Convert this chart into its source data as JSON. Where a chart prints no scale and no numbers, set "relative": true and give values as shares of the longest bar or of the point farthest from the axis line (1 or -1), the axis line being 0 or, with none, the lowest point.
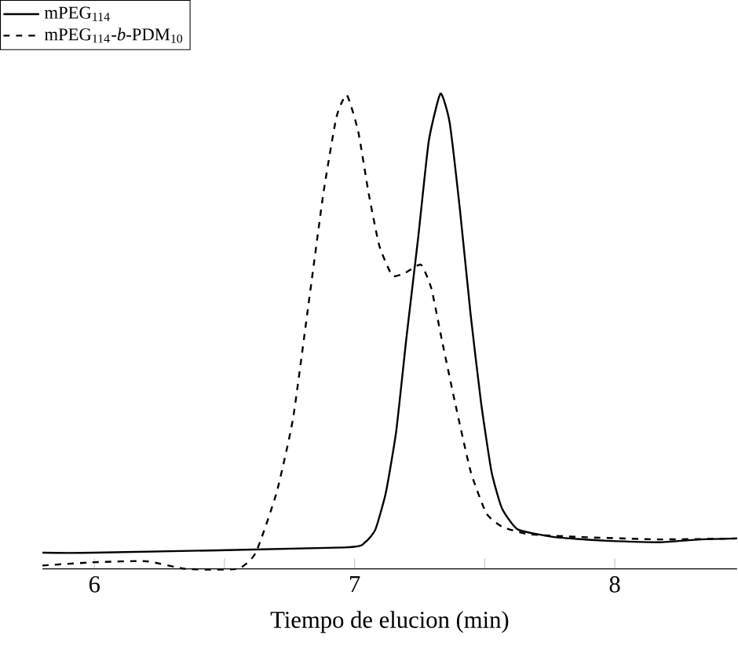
{
  "chart_data": {
    "type": "line",
    "relative": true,
    "xlabel": "Tiempo de elucion (min)",
    "xlim": [
      5.8,
      8.47
    ],
    "xticks": [
      6,
      {
        "value": 6.5,
        "label": null
      },
      7,
      {
        "value": 7.5,
        "label": null
      },
      8
    ],
    "legend": "top left",
    "series": [
      {
        "name": "mPEG$_{114}$",
        "color": "#000000",
        "line_style": "solid",
        "x": [
          5.8,
          6.0,
          6.96,
          7.04,
          7.08,
          7.12,
          7.16,
          7.2,
          7.245,
          7.285,
          7.33,
          7.365,
          7.405,
          7.446,
          7.486,
          7.526,
          7.566,
          7.627,
          7.767,
          7.968,
          8.17,
          8.33,
          8.47
        ],
        "values": [
          0.034,
          0.034,
          0.045,
          0.056,
          0.083,
          0.16,
          0.29,
          0.49,
          0.7,
          0.9,
          1.0,
          0.94,
          0.755,
          0.535,
          0.35,
          0.205,
          0.128,
          0.083,
          0.067,
          0.059,
          0.056,
          0.062,
          0.064
        ]
      },
      {
        "name": "mPEG$_{114}$-*b*-PDM$_{10}$",
        "color": "#000000",
        "line_style": "dashed",
        "x": [
          5.8,
          6.0,
          6.2,
          6.35,
          6.55,
          6.62,
          6.7,
          6.763,
          6.82,
          6.88,
          6.93,
          6.97,
          7.014,
          7.054,
          7.095,
          7.145,
          7.195,
          7.255,
          7.295,
          7.336,
          7.386,
          7.446,
          7.506,
          7.566,
          7.667,
          7.87,
          8.17,
          8.47
        ],
        "values": [
          0.007,
          0.014,
          0.016,
          0,
          0,
          0.034,
          0.16,
          0.315,
          0.545,
          0.79,
          0.95,
          0.997,
          0.92,
          0.79,
          0.68,
          0.617,
          0.623,
          0.64,
          0.59,
          0.48,
          0.35,
          0.205,
          0.117,
          0.089,
          0.073,
          0.067,
          0.062,
          0.064
        ]
      }
    ]
  }
}
